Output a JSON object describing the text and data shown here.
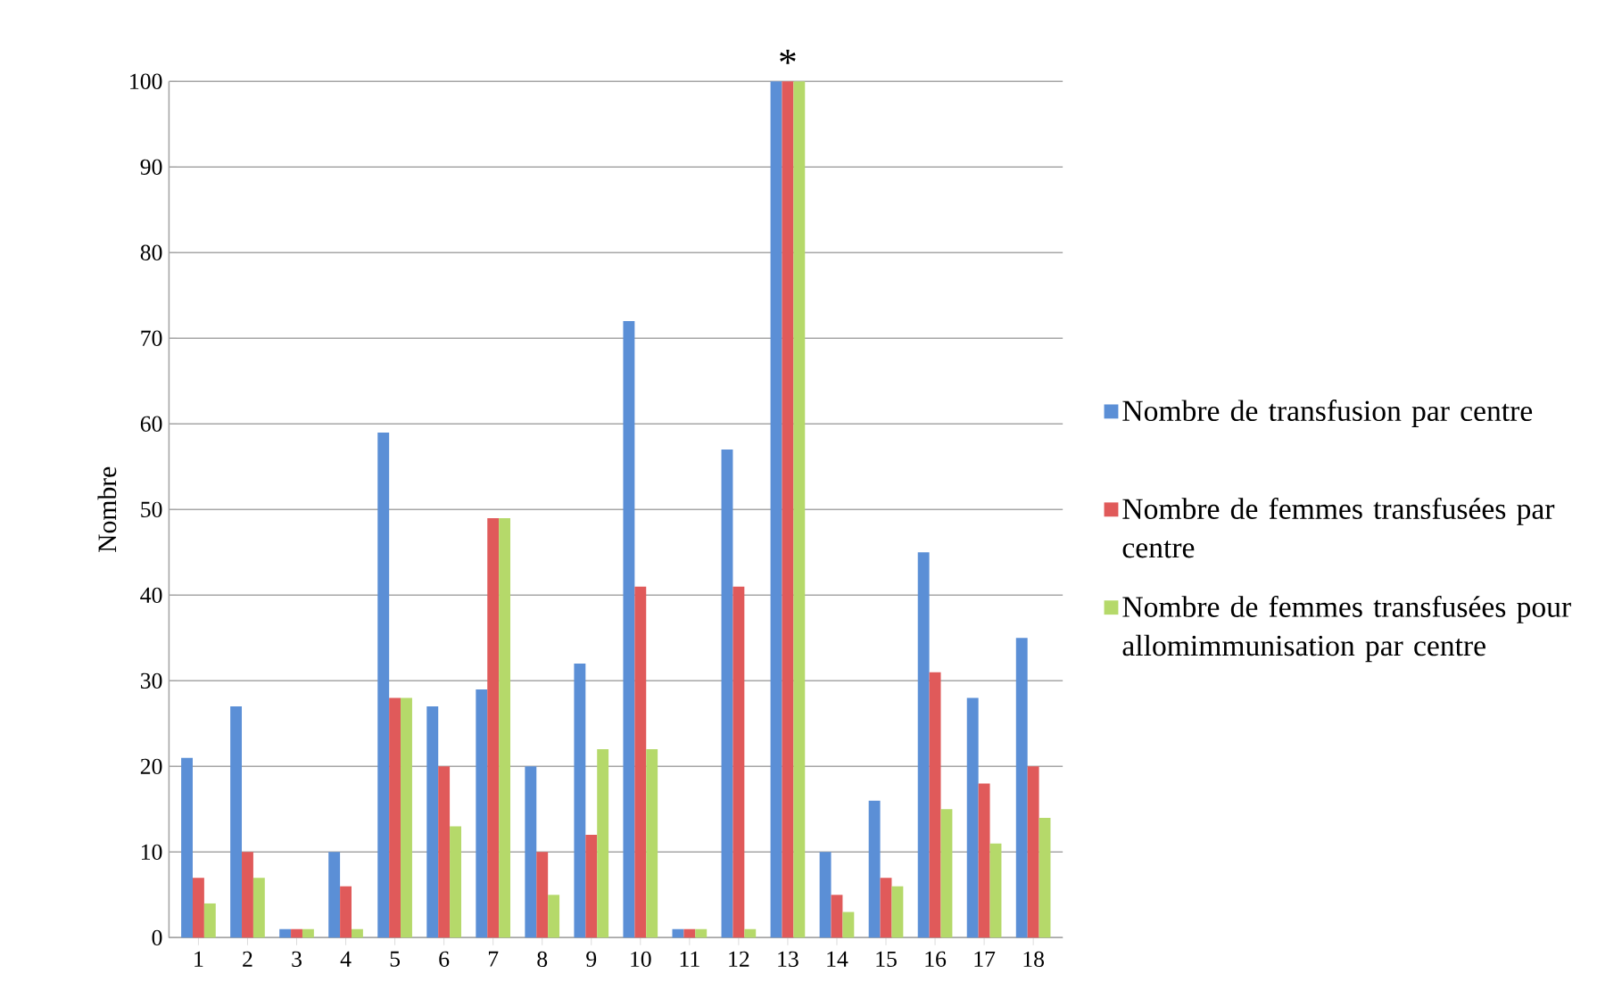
{
  "chart_data": {
    "type": "bar",
    "ylabel": "Nombre",
    "categories": [
      "1",
      "2",
      "3",
      "4",
      "5",
      "6",
      "7",
      "8",
      "9",
      "10",
      "11",
      "12",
      "13",
      "14",
      "15",
      "16",
      "17",
      "18"
    ],
    "series": [
      {
        "name": "Nombre de transfusion par centre",
        "color": "#5b8fd6",
        "values": [
          21,
          27,
          1,
          10,
          59,
          27,
          29,
          20,
          32,
          72,
          1,
          57,
          100,
          10,
          16,
          45,
          28,
          35
        ]
      },
      {
        "name": "Nombre de femmes transfusées par centre",
        "color": "#e05a5a",
        "values": [
          7,
          10,
          1,
          6,
          28,
          20,
          49,
          10,
          12,
          41,
          1,
          41,
          100,
          5,
          7,
          31,
          18,
          20
        ]
      },
      {
        "name": "Nombre de femmes transfusées pour allomimmunisation par centre",
        "color": "#b5d96a",
        "values": [
          4,
          7,
          1,
          1,
          28,
          13,
          49,
          5,
          22,
          22,
          1,
          1,
          100,
          3,
          6,
          15,
          11,
          14
        ]
      }
    ],
    "ylim": [
      0,
      100
    ],
    "yticks": [
      0,
      10,
      20,
      30,
      40,
      50,
      60,
      70,
      80,
      90,
      100
    ],
    "grid": "y",
    "legend": "right",
    "annotations": [
      {
        "text": "*",
        "x": "13",
        "y": 100
      }
    ]
  }
}
